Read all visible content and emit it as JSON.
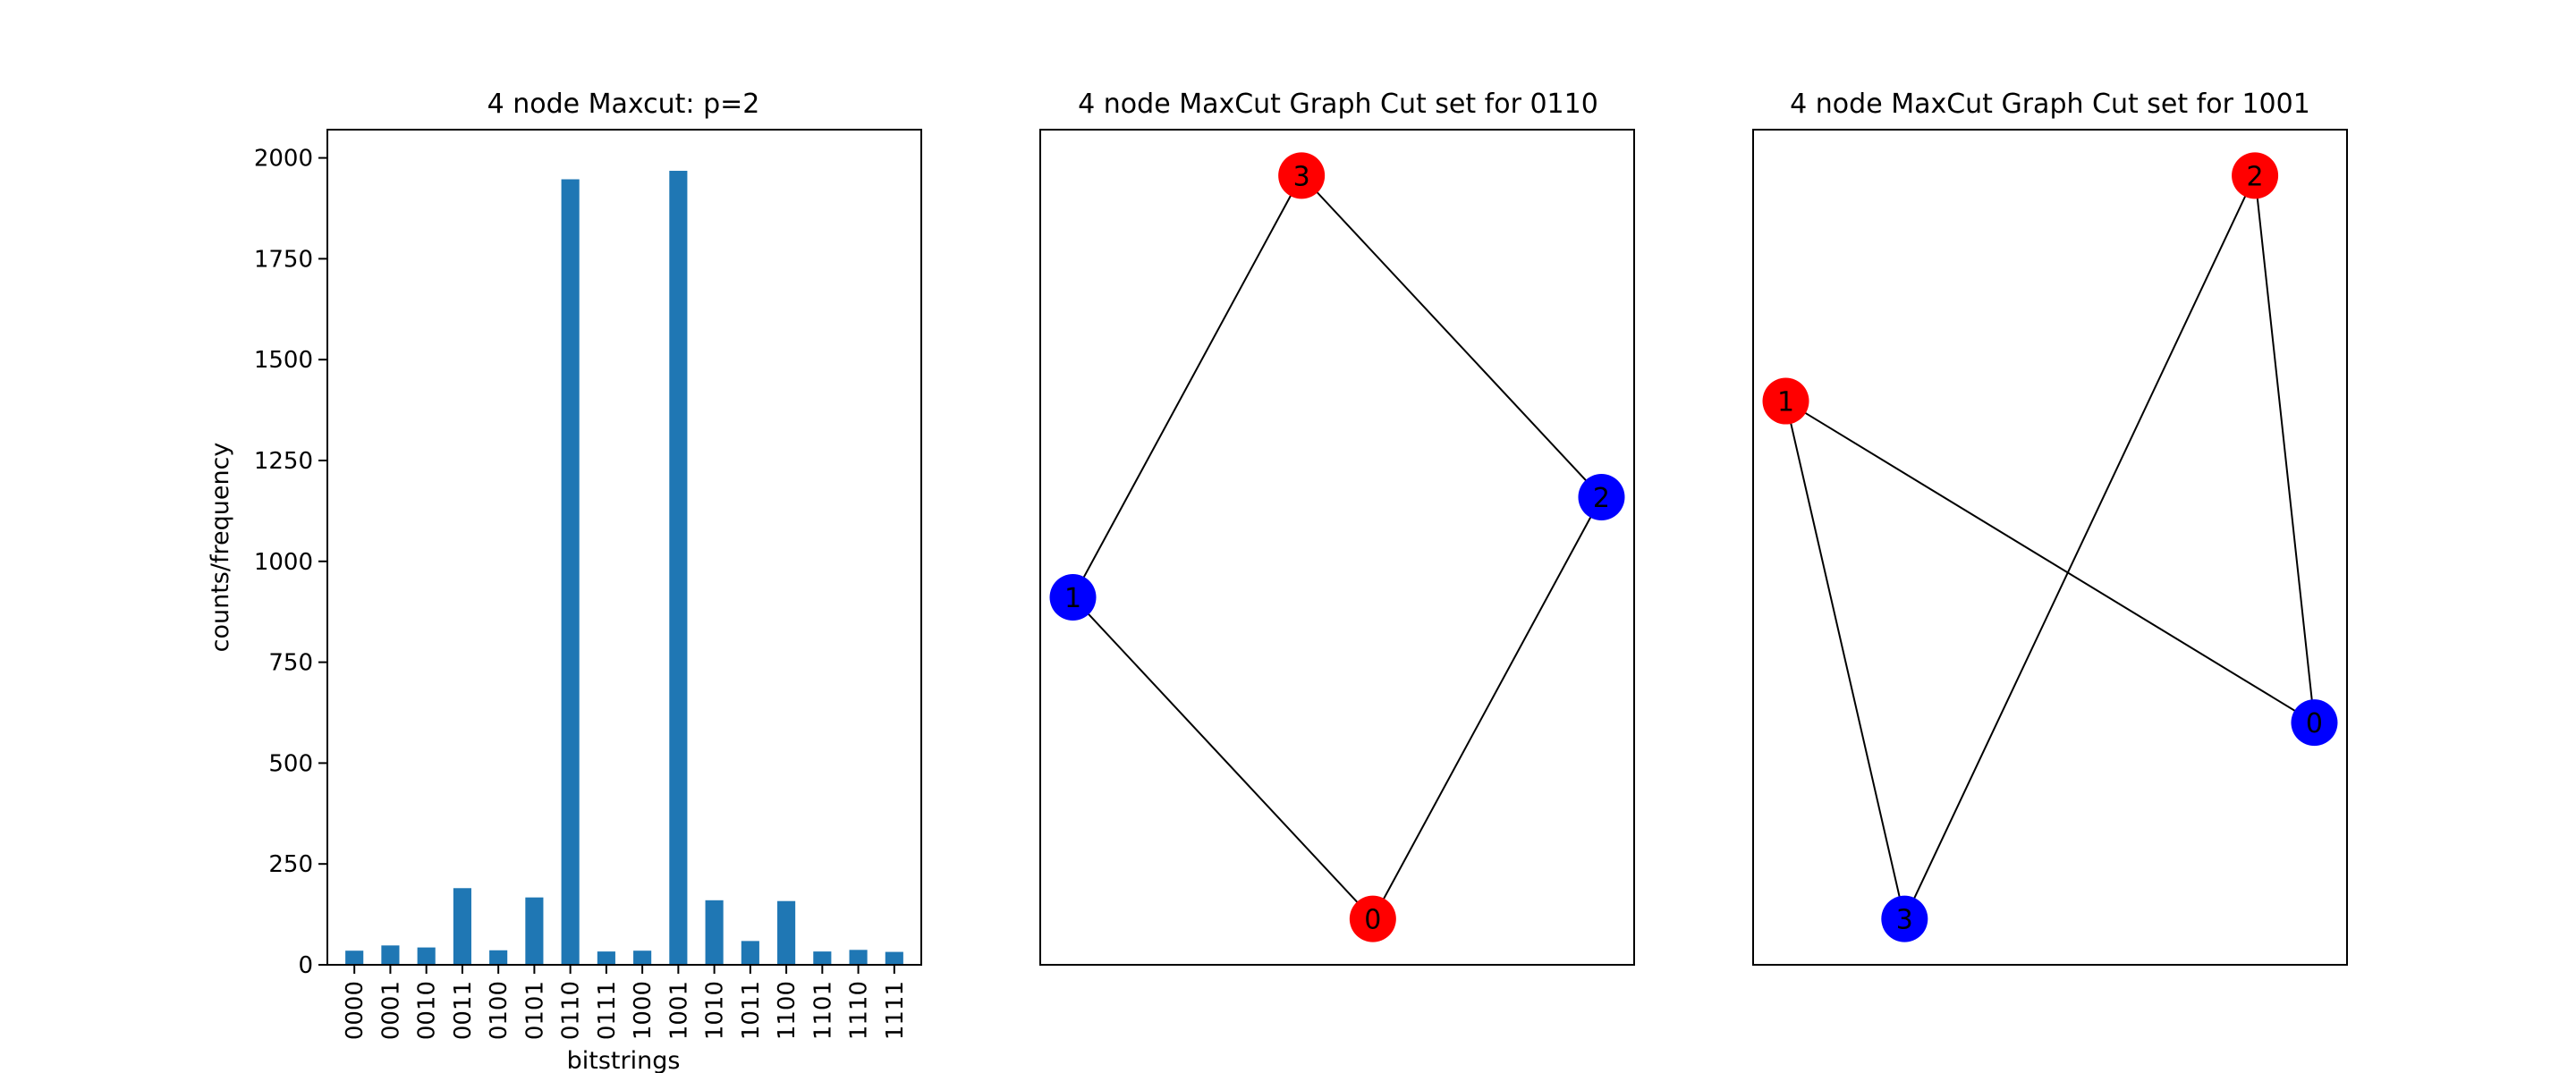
{
  "chart_data": [
    {
      "type": "bar",
      "title": "4 node Maxcut: p=2",
      "xlabel": "bitstrings",
      "ylabel": "counts/frequency",
      "categories": [
        "0000",
        "0001",
        "0010",
        "0011",
        "0100",
        "0101",
        "0110",
        "0111",
        "1000",
        "1001",
        "1010",
        "1011",
        "1100",
        "1101",
        "1110",
        "1111"
      ],
      "values": [
        35,
        48,
        43,
        190,
        36,
        167,
        1947,
        33,
        35,
        1968,
        160,
        59,
        158,
        33,
        37,
        32
      ],
      "ylim": [
        0,
        2070
      ],
      "yticks": [
        0,
        250,
        500,
        750,
        1000,
        1250,
        1500,
        1750,
        2000
      ],
      "bar_color": "#1f77b4",
      "grid": false
    },
    {
      "type": "graph",
      "title": "4 node MaxCut Graph Cut set for 0110",
      "nodes": [
        {
          "id": "0",
          "color": "red",
          "x": 0.56,
          "y": 0.055
        },
        {
          "id": "1",
          "color": "blue",
          "x": 0.055,
          "y": 0.44
        },
        {
          "id": "2",
          "color": "blue",
          "x": 0.945,
          "y": 0.56
        },
        {
          "id": "3",
          "color": "red",
          "x": 0.44,
          "y": 0.945
        }
      ],
      "edges": [
        [
          "0",
          "1"
        ],
        [
          "0",
          "2"
        ],
        [
          "1",
          "3"
        ],
        [
          "2",
          "3"
        ]
      ]
    },
    {
      "type": "graph",
      "title": "4 node MaxCut Graph Cut set for 1001",
      "nodes": [
        {
          "id": "0",
          "color": "blue",
          "x": 0.945,
          "y": 0.29
        },
        {
          "id": "1",
          "color": "red",
          "x": 0.055,
          "y": 0.675
        },
        {
          "id": "2",
          "color": "red",
          "x": 0.845,
          "y": 0.945
        },
        {
          "id": "3",
          "color": "blue",
          "x": 0.255,
          "y": 0.055
        }
      ],
      "edges": [
        [
          "0",
          "1"
        ],
        [
          "0",
          "2"
        ],
        [
          "1",
          "3"
        ],
        [
          "2",
          "3"
        ]
      ]
    }
  ]
}
